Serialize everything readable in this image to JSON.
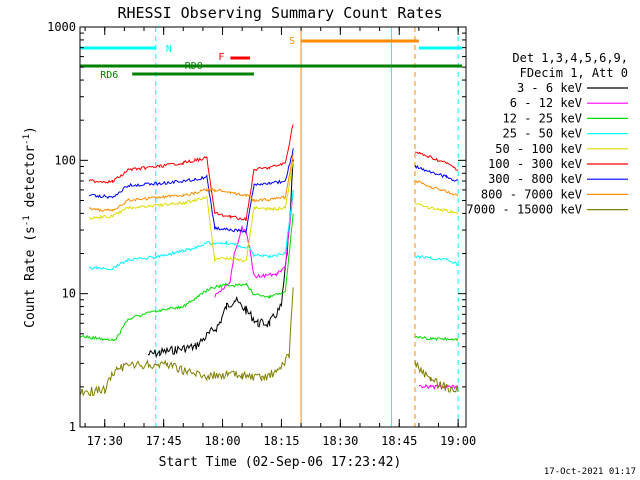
{
  "chart_data": {
    "type": "line",
    "title": "RHESSI Observing Summary Count Rates",
    "xlabel": "Start Time (02-Sep-06 17:23:42)",
    "ylabel_main": "Count Rate (s",
    "ylabel_sup1": "-1",
    "ylabel_mid": " detector",
    "ylabel_sup2": "-1",
    "ylabel_end": ")",
    "y_scale": "log",
    "ylim": [
      1,
      1000
    ],
    "x_range": [
      "17:23:42",
      "19:02:00"
    ],
    "x_ticks": [
      "17:30",
      "17:45",
      "18:00",
      "18:15",
      "18:30",
      "18:45",
      "19:00"
    ],
    "y_ticks": [
      "1",
      "10",
      "100",
      "1000"
    ],
    "date_stamp": "17-Oct-2021 01:17",
    "legend": {
      "header1": "Det 1,3,4,5,6,9,",
      "header2": "FDecim 1, Att 0",
      "placement": "right"
    },
    "series": [
      {
        "name": "3 - 6 keV",
        "color": "#000000",
        "points": [
          [
            "17:41",
            3.5
          ],
          [
            "17:44",
            3.6
          ],
          [
            "17:48",
            3.8
          ],
          [
            "17:53",
            4.0
          ],
          [
            "17:59",
            5.8
          ],
          [
            "18:01",
            8.0
          ],
          [
            "18:03",
            9.0
          ],
          [
            "18:06",
            7.5
          ],
          [
            "18:09",
            6.0
          ],
          [
            "18:12",
            6.0
          ],
          [
            "18:15",
            8.0
          ],
          [
            "18:17",
            30.0
          ],
          [
            "18:18",
            100.0
          ]
        ]
      },
      {
        "name": "6 - 12 keV",
        "color": "#ff00ff",
        "points": [
          [
            "17:58",
            9.5
          ],
          [
            "18:02",
            12.5
          ],
          [
            "18:03",
            20.0
          ],
          [
            "18:04",
            25.0
          ],
          [
            "18:05",
            32.0
          ],
          [
            "18:06",
            28.0
          ],
          [
            "18:07",
            22.0
          ],
          [
            "18:08",
            13.5
          ],
          [
            "18:14",
            14.0
          ],
          [
            "18:16",
            16.0
          ],
          [
            "18:18",
            60.0
          ],
          [
            "18:50",
            2.0
          ],
          [
            "18:53",
            2.0
          ],
          [
            "18:57",
            2.0
          ],
          [
            "19:00",
            2.0
          ]
        ]
      },
      {
        "name": "12 - 25 keV",
        "color": "#00dd00",
        "points": [
          [
            "17:23",
            4.8
          ],
          [
            "17:32",
            4.5
          ],
          [
            "17:33",
            4.6
          ],
          [
            "17:36",
            6.5
          ],
          [
            "17:44",
            7.5
          ],
          [
            "17:50",
            8.0
          ],
          [
            "17:57",
            11.0
          ],
          [
            "18:00",
            11.5
          ],
          [
            "18:04",
            11.5
          ],
          [
            "18:06",
            12.0
          ],
          [
            "18:08",
            9.8
          ],
          [
            "18:12",
            9.5
          ],
          [
            "18:16",
            10.5
          ],
          [
            "18:18",
            40.0
          ],
          [
            "18:49",
            4.7
          ],
          [
            "18:53",
            4.6
          ],
          [
            "18:57",
            4.6
          ],
          [
            "19:00",
            4.5
          ]
        ]
      },
      {
        "name": "25 - 50 keV",
        "color": "#00ffff",
        "points": [
          [
            "17:26",
            15.5
          ],
          [
            "17:32",
            15.5
          ],
          [
            "17:36",
            18.0
          ],
          [
            "17:44",
            19.0
          ],
          [
            "17:50",
            21.0
          ],
          [
            "17:53",
            22.0
          ],
          [
            "17:56",
            24.0
          ],
          [
            "18:01",
            24.0
          ],
          [
            "18:07",
            22.0
          ],
          [
            "18:08",
            19.5
          ],
          [
            "18:12",
            19.0
          ],
          [
            "18:16",
            20.0
          ],
          [
            "18:18",
            60.0
          ],
          [
            "18:49",
            19.0
          ],
          [
            "18:53",
            18.5
          ],
          [
            "18:57",
            18.0
          ],
          [
            "19:00",
            16.5
          ]
        ]
      },
      {
        "name": "50 - 100 keV",
        "color": "#dddd00",
        "points": [
          [
            "17:26",
            37.0
          ],
          [
            "17:32",
            38.0
          ],
          [
            "17:36",
            44.0
          ],
          [
            "17:44",
            46.0
          ],
          [
            "17:50",
            48.0
          ],
          [
            "17:53",
            50.0
          ],
          [
            "17:56",
            53.0
          ],
          [
            "17:58",
            18.0
          ],
          [
            "18:02",
            18.5
          ],
          [
            "18:06",
            17.5
          ],
          [
            "18:08",
            44.0
          ],
          [
            "18:12",
            43.0
          ],
          [
            "18:16",
            44.0
          ],
          [
            "18:18",
            100.0
          ],
          [
            "18:49",
            48.0
          ],
          [
            "18:53",
            44.0
          ],
          [
            "18:57",
            42.0
          ],
          [
            "19:00",
            40.0
          ]
        ]
      },
      {
        "name": "100 - 300 keV",
        "color": "#ff0000",
        "points": [
          [
            "17:26",
            70.0
          ],
          [
            "17:32",
            69.0
          ],
          [
            "17:36",
            85.0
          ],
          [
            "17:44",
            90.0
          ],
          [
            "17:50",
            96.0
          ],
          [
            "17:53",
            100.0
          ],
          [
            "17:56",
            105.0
          ],
          [
            "17:58",
            40.0
          ],
          [
            "18:02",
            38.0
          ],
          [
            "18:06",
            36.0
          ],
          [
            "18:08",
            85.0
          ],
          [
            "18:12",
            88.0
          ],
          [
            "18:16",
            95.0
          ],
          [
            "18:18",
            190.0
          ],
          [
            "18:49",
            115.0
          ],
          [
            "18:53",
            105.0
          ],
          [
            "18:57",
            95.0
          ],
          [
            "19:00",
            85.0
          ]
        ]
      },
      {
        "name": "300 - 800 keV",
        "color": "#0000ff",
        "points": [
          [
            "17:26",
            55.0
          ],
          [
            "17:32",
            53.0
          ],
          [
            "17:36",
            65.0
          ],
          [
            "17:44",
            67.0
          ],
          [
            "17:50",
            70.0
          ],
          [
            "17:53",
            72.0
          ],
          [
            "17:56",
            75.0
          ],
          [
            "17:58",
            31.0
          ],
          [
            "18:02",
            30.0
          ],
          [
            "18:06",
            29.5
          ],
          [
            "18:08",
            65.0
          ],
          [
            "18:12",
            67.0
          ],
          [
            "18:16",
            70.0
          ],
          [
            "18:18",
            120.0
          ],
          [
            "18:49",
            90.0
          ],
          [
            "18:53",
            82.0
          ],
          [
            "18:57",
            75.0
          ],
          [
            "19:00",
            70.0
          ]
        ]
      },
      {
        "name": "800 - 7000 keV",
        "color": "#ff8c00",
        "points": [
          [
            "17:26",
            43.0
          ],
          [
            "17:32",
            42.0
          ],
          [
            "17:36",
            50.0
          ],
          [
            "17:44",
            53.0
          ],
          [
            "17:50",
            55.0
          ],
          [
            "17:53",
            57.0
          ],
          [
            "17:56",
            60.0
          ],
          [
            "17:58",
            60.0
          ],
          [
            "18:02",
            57.0
          ],
          [
            "18:06",
            55.0
          ],
          [
            "18:08",
            50.0
          ],
          [
            "18:12",
            51.0
          ],
          [
            "18:16",
            53.0
          ],
          [
            "18:18",
            110.0
          ],
          [
            "18:49",
            70.0
          ],
          [
            "18:53",
            63.0
          ],
          [
            "18:57",
            58.0
          ],
          [
            "19:00",
            55.0
          ]
        ]
      },
      {
        "name": "7000 - 15000 keV",
        "color": "#808000",
        "points": [
          [
            "17:23",
            1.8
          ],
          [
            "17:30",
            1.9
          ],
          [
            "17:33",
            2.8
          ],
          [
            "17:40",
            2.9
          ],
          [
            "17:46",
            3.0
          ],
          [
            "17:51",
            2.6
          ],
          [
            "17:56",
            2.4
          ],
          [
            "18:01",
            2.5
          ],
          [
            "18:05",
            2.4
          ],
          [
            "18:10",
            2.3
          ],
          [
            "18:14",
            2.6
          ],
          [
            "18:17",
            3.5
          ],
          [
            "18:18",
            12.0
          ],
          [
            "18:49",
            3.0
          ],
          [
            "18:53",
            2.2
          ],
          [
            "18:57",
            2.0
          ],
          [
            "19:00",
            1.9
          ]
        ]
      }
    ],
    "state_bars": [
      {
        "label": "N",
        "color": "#00ffff",
        "ranges": [
          [
            "17:23",
            "17:43"
          ],
          [
            "18:50",
            "19:01"
          ]
        ]
      },
      {
        "label": "F",
        "color": "#ff0000",
        "ranges": [
          [
            "18:02",
            "18:07"
          ]
        ]
      },
      {
        "label": "RDO",
        "color": "#008000",
        "ranges": [
          [
            "17:58",
            "18:07"
          ]
        ]
      },
      {
        "label": "RD6",
        "color": "#008000",
        "ranges": [
          [
            "17:37",
            "18:08"
          ]
        ]
      },
      {
        "label": "S",
        "color": "#ff8c00",
        "ranges": [
          [
            "18:20",
            "18:50"
          ]
        ]
      },
      {
        "label": "",
        "color": "#008000",
        "ranges": [
          [
            "17:23",
            "19:01"
          ]
        ]
      }
    ],
    "markers": [
      {
        "time": "17:23:42",
        "color": "#00ffff",
        "style": "solid"
      },
      {
        "time": "17:43",
        "color": "#00ffff",
        "style": "dashed"
      },
      {
        "time": "18:20",
        "color": "#ff8c00",
        "style": "solid"
      },
      {
        "time": "18:43",
        "color": "#00ffff",
        "style": "solid"
      },
      {
        "time": "18:49",
        "color": "#ff8c00",
        "style": "dashed"
      },
      {
        "time": "19:00",
        "color": "#00ffff",
        "style": "dashed"
      }
    ]
  }
}
